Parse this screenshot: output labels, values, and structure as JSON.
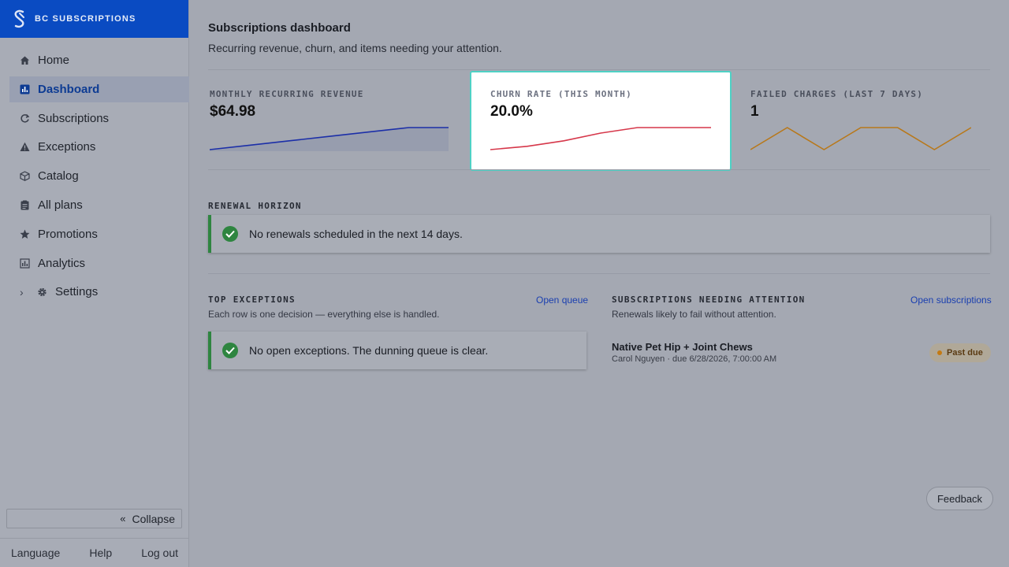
{
  "brand": {
    "name": "BC SUBSCRIPTIONS"
  },
  "sidebar": {
    "items": [
      {
        "label": "Home",
        "icon": "home-icon"
      },
      {
        "label": "Dashboard",
        "icon": "dashboard-icon",
        "active": true
      },
      {
        "label": "Subscriptions",
        "icon": "refresh-icon"
      },
      {
        "label": "Exceptions",
        "icon": "warning-icon"
      },
      {
        "label": "Catalog",
        "icon": "box-icon"
      },
      {
        "label": "All plans",
        "icon": "clipboard-icon"
      },
      {
        "label": "Promotions",
        "icon": "star-icon"
      },
      {
        "label": "Analytics",
        "icon": "chart-icon"
      },
      {
        "label": "Settings",
        "icon": "gear-icon"
      }
    ],
    "collapse_label": "Collapse",
    "footer": {
      "language": "Language",
      "help": "Help",
      "logout": "Log out"
    }
  },
  "header": {
    "title": "Subscriptions dashboard",
    "subtitle": "Recurring revenue, churn, and items needing your attention."
  },
  "kpis": [
    {
      "label": "MONTHLY RECURRING REVENUE",
      "value": "$64.98",
      "color": "#1c2fa8",
      "trend": [
        0,
        0.2,
        0.4,
        0.6,
        0.8,
        1,
        1
      ]
    },
    {
      "label": "CHURN RATE (THIS MONTH)",
      "value": "20.0%",
      "color": "#d6374a",
      "trend": [
        0,
        0.15,
        0.4,
        0.75,
        1,
        1,
        1
      ]
    },
    {
      "label": "FAILED CHARGES (LAST 7 DAYS)",
      "value": "1",
      "color": "#b8781a",
      "trend": [
        0,
        1,
        0,
        1,
        1,
        0,
        1
      ]
    }
  ],
  "renewal": {
    "label": "RENEWAL HORIZON",
    "message": "No renewals scheduled in the next 14 days."
  },
  "exceptions": {
    "label": "TOP EXCEPTIONS",
    "sub": "Each row is one decision — everything else is handled.",
    "link": "Open queue",
    "message": "No open exceptions. The dunning queue is clear."
  },
  "attention": {
    "label": "SUBSCRIPTIONS NEEDING ATTENTION",
    "sub": "Renewals likely to fail without attention.",
    "link": "Open subscriptions",
    "item": {
      "title": "Native Pet Hip + Joint Chews",
      "meta": "Carol Nguyen · due 6/28/2026, 7:00:00 AM",
      "status": "Past due"
    }
  },
  "feedback_label": "Feedback"
}
